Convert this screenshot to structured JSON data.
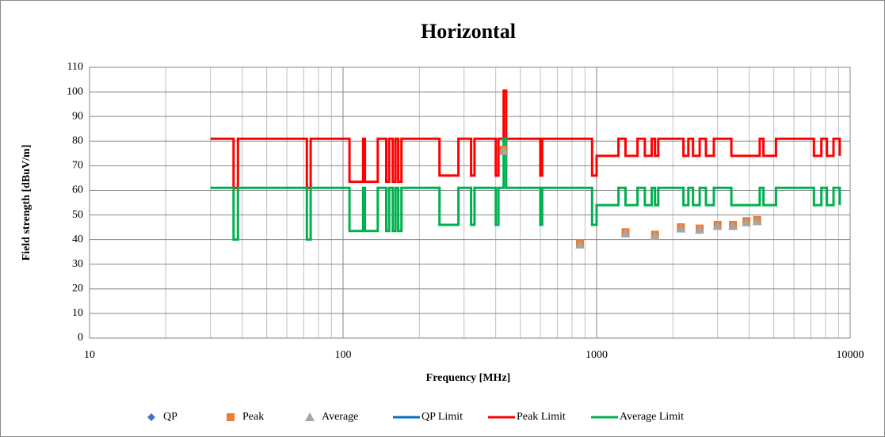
{
  "chart_data": {
    "type": "scatter-step",
    "title": "Horizontal",
    "xlabel": "Frequency  [MHz]",
    "ylabel": "Field strength [dBuV/m]",
    "xscale": "log",
    "xlim": [
      10,
      10000
    ],
    "xticks": [
      10,
      100,
      1000,
      10000
    ],
    "ylim": [
      0,
      110
    ],
    "yticks": [
      0,
      10,
      20,
      30,
      40,
      50,
      60,
      70,
      80,
      90,
      100,
      110
    ],
    "grid": true,
    "minor_grid": true,
    "legend": "bottom",
    "series": [
      {
        "name": "QP",
        "kind": "marker",
        "marker": "diamond",
        "color": "#4472c4",
        "x": [],
        "values": []
      },
      {
        "name": "Peak",
        "kind": "marker",
        "marker": "square",
        "color": "#ed7d31",
        "x": [
          430,
          860,
          1300,
          1700,
          2150,
          2550,
          3000,
          3450,
          3900,
          4300
        ],
        "values": [
          76.5,
          38.5,
          43,
          42,
          45,
          44.5,
          46,
          46,
          47.5,
          48
        ]
      },
      {
        "name": "Average",
        "kind": "marker",
        "marker": "triangle",
        "color": "#a5a5a5",
        "x": [
          430,
          860,
          1300,
          1700,
          2150,
          2550,
          3000,
          3450,
          3900,
          4300
        ],
        "values": [
          76,
          38,
          42.5,
          41.5,
          44.5,
          44,
          45.5,
          45.5,
          47,
          47.5
        ]
      },
      {
        "name": "QP Limit",
        "kind": "step",
        "color": "#0070c0",
        "x": [],
        "values": []
      },
      {
        "name": "Peak Limit",
        "kind": "step",
        "color": "#ff0000",
        "x": [
          30,
          37,
          38.5,
          72,
          74.5,
          106,
          120,
          122,
          137,
          148,
          152,
          157,
          161,
          165,
          170,
          240,
          285,
          320,
          330,
          400,
          410,
          430,
          440,
          600,
          610,
          960,
          1000,
          1220,
          1300,
          1450,
          1550,
          1650,
          1700,
          1750,
          2200,
          2300,
          2400,
          2550,
          2700,
          2900,
          3400,
          4400,
          4550,
          5100,
          7200,
          7700,
          8100,
          8600,
          9100
        ],
        "values": [
          81,
          61,
          81,
          61,
          81,
          63.5,
          81,
          63.5,
          81,
          63.5,
          81,
          63.5,
          81,
          63.5,
          81,
          66,
          81,
          66,
          81,
          66,
          81,
          100.5,
          81,
          66,
          81,
          66,
          74,
          81,
          74,
          81,
          74,
          81,
          74,
          81,
          74,
          81,
          74,
          81,
          74,
          81,
          74,
          81,
          74,
          81,
          74,
          81,
          74,
          81,
          74
        ]
      },
      {
        "name": "Average Limit",
        "kind": "step",
        "color": "#00b050",
        "x": [
          30,
          37,
          38.5,
          72,
          74.5,
          106,
          120,
          122,
          137,
          148,
          152,
          157,
          161,
          165,
          170,
          240,
          285,
          320,
          330,
          400,
          410,
          430,
          440,
          600,
          610,
          960,
          1000,
          1220,
          1300,
          1450,
          1550,
          1650,
          1700,
          1750,
          2200,
          2300,
          2400,
          2550,
          2700,
          2900,
          3400,
          4400,
          4550,
          5100,
          7200,
          7700,
          8100,
          8600,
          9100
        ],
        "values": [
          61,
          40,
          61,
          40,
          61,
          43.5,
          61,
          43.5,
          61,
          43.5,
          61,
          43.5,
          61,
          43.5,
          61,
          46,
          61,
          46,
          61,
          46,
          61,
          81,
          61,
          46,
          61,
          46,
          54,
          61,
          54,
          61,
          54,
          61,
          54,
          61,
          54,
          61,
          54,
          61,
          54,
          61,
          54,
          61,
          54,
          61,
          54,
          61,
          54,
          61,
          54
        ]
      }
    ]
  }
}
